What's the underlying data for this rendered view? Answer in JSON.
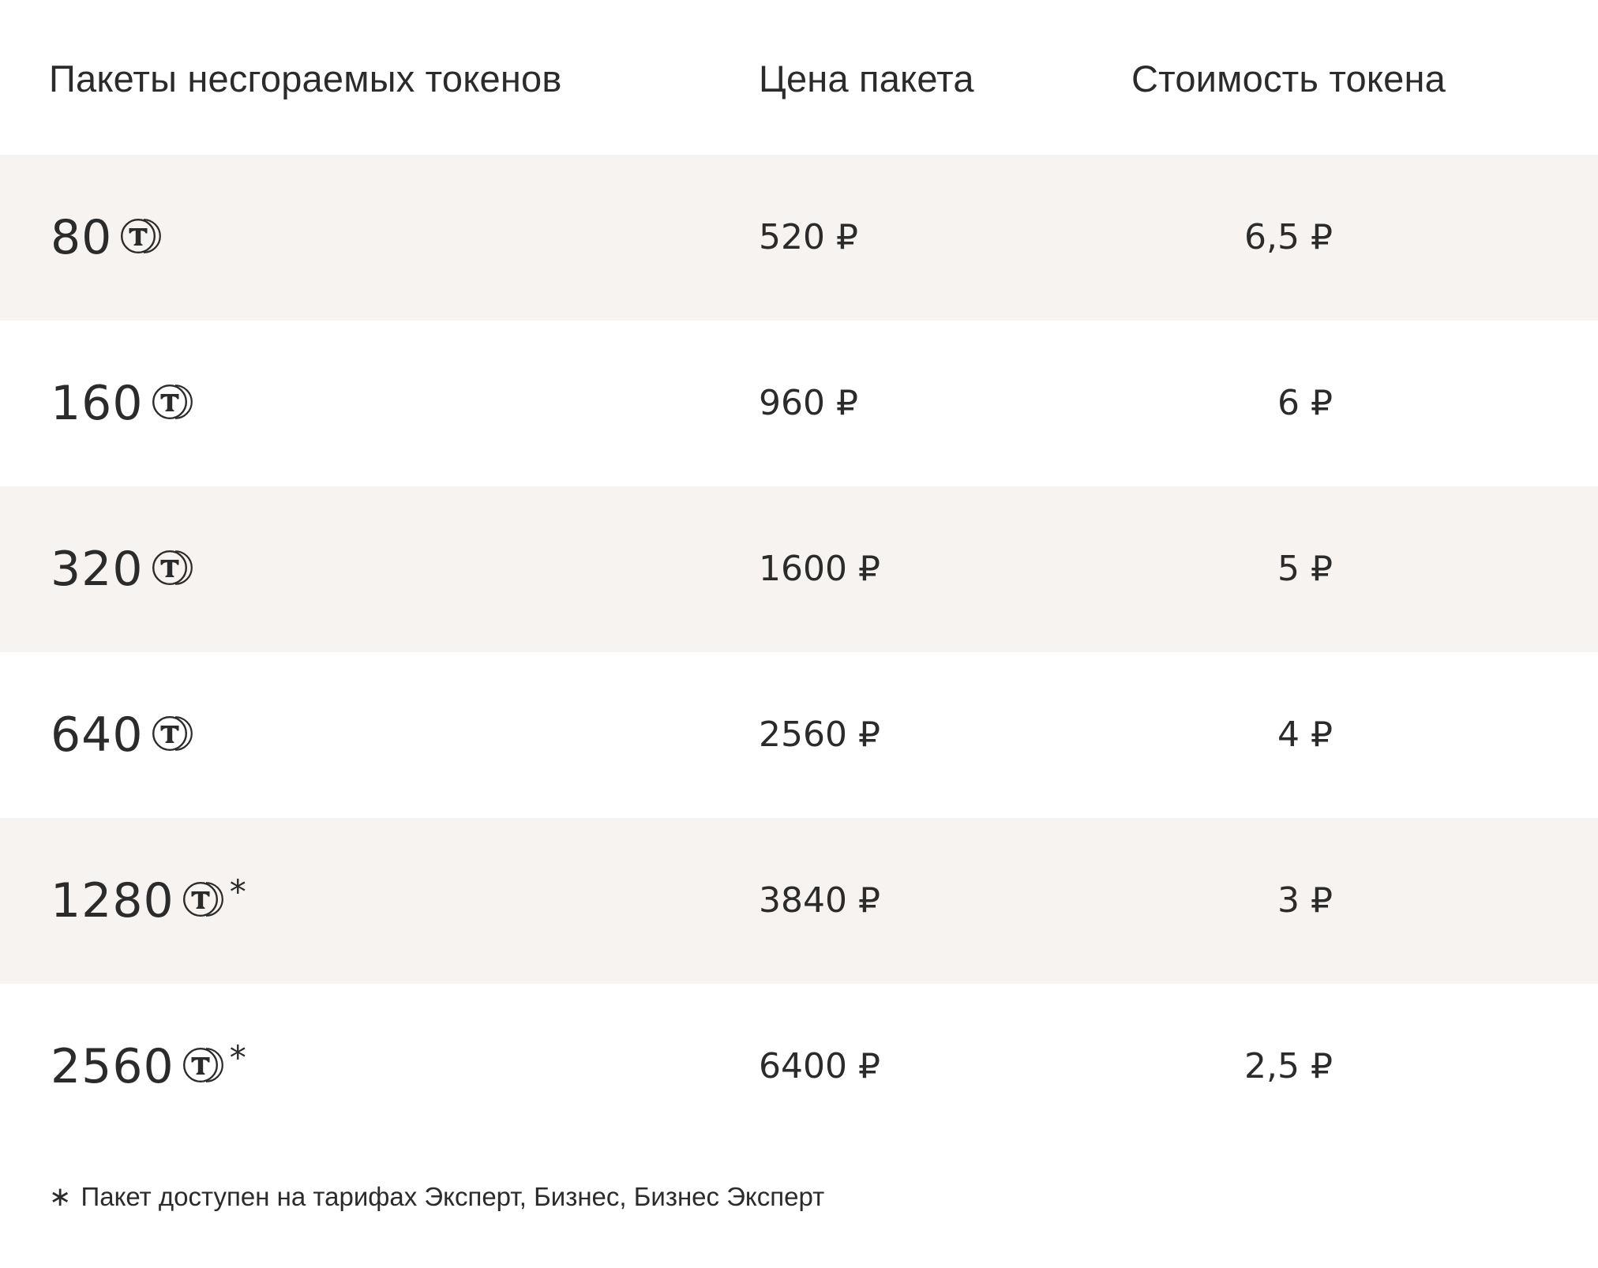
{
  "header": {
    "col_packages": "Пакеты несгораемых токенов",
    "col_price": "Цена пакета",
    "col_token_cost": "Стоимость токена"
  },
  "token_icon": "coin-t-icon",
  "rows": [
    {
      "amount": "80",
      "asterisk": "",
      "price": "520 ₽",
      "token_cost": "6,5 ₽",
      "shaded": true
    },
    {
      "amount": "160",
      "asterisk": "",
      "price": "960 ₽",
      "token_cost": "6 ₽",
      "shaded": false
    },
    {
      "amount": "320",
      "asterisk": "",
      "price": "1600 ₽",
      "token_cost": "5 ₽",
      "shaded": true
    },
    {
      "amount": "640",
      "asterisk": "",
      "price": "2560 ₽",
      "token_cost": "4 ₽",
      "shaded": false
    },
    {
      "amount": "1280",
      "asterisk": "*",
      "price": "3840 ₽",
      "token_cost": "3 ₽",
      "shaded": true
    },
    {
      "amount": "2560",
      "asterisk": "*",
      "price": "6400 ₽",
      "token_cost": "2,5 ₽",
      "shaded": false
    }
  ],
  "footnote": {
    "marker": "∗",
    "text": "Пакет доступен на тарифах Эксперт, Бизнес, Бизнес Эксперт"
  },
  "colors": {
    "text": "#2B2B2B",
    "row_shaded": "#F7F3F0",
    "background": "#FFFFFF"
  }
}
